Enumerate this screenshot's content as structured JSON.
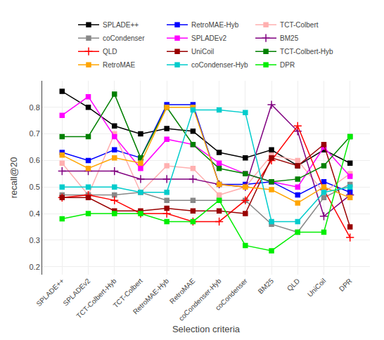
{
  "chart_data": {
    "type": "line",
    "xlabel": "Selection criteria",
    "ylabel": "recall@20",
    "categories": [
      "SPLADE++",
      "SPLADEv2",
      "TCT-Colbert-Hyb",
      "TCT-Colbert",
      "RetroMAE-Hyb",
      "RetroMAE",
      "coCondenser-Hyb",
      "coCondenser",
      "BM25",
      "QLD",
      "UniCoil",
      "DPR"
    ],
    "series": [
      {
        "name": "SPLADE++",
        "color": "#000000",
        "marker": "square",
        "values": [
          0.86,
          0.8,
          0.73,
          0.7,
          0.72,
          0.71,
          0.63,
          0.61,
          0.64,
          0.58,
          0.64,
          0.59
        ]
      },
      {
        "name": "RetroMAE-Hyb",
        "color": "#0000ff",
        "marker": "square",
        "values": [
          0.63,
          0.6,
          0.64,
          0.61,
          0.81,
          0.81,
          0.51,
          0.51,
          0.52,
          0.47,
          0.52,
          0.48
        ]
      },
      {
        "name": "TCT-Colbert",
        "color": "#ffb0b0",
        "marker": "square",
        "values": [
          0.59,
          0.47,
          0.7,
          0.48,
          0.58,
          0.57,
          0.47,
          0.5,
          0.62,
          0.6,
          0.48,
          0.55
        ]
      },
      {
        "name": "coCondenser",
        "color": "#888888",
        "marker": "square",
        "values": [
          0.47,
          0.47,
          0.47,
          0.48,
          0.45,
          0.45,
          0.45,
          0.45,
          0.36,
          0.33,
          0.46,
          0.51
        ]
      },
      {
        "name": "SPLADEv2",
        "color": "#ff00ff",
        "marker": "square",
        "values": [
          0.77,
          0.84,
          0.69,
          0.57,
          0.68,
          0.66,
          0.59,
          0.55,
          0.52,
          0.5,
          0.65,
          0.54
        ]
      },
      {
        "name": "BM25",
        "color": "#800080",
        "marker": "plus",
        "values": [
          0.56,
          0.56,
          0.56,
          0.53,
          0.53,
          0.53,
          0.51,
          0.5,
          0.81,
          0.71,
          0.39,
          0.47
        ]
      },
      {
        "name": "QLD",
        "color": "#ff0000",
        "marker": "plus",
        "values": [
          0.46,
          0.47,
          0.45,
          0.4,
          0.4,
          0.37,
          0.37,
          0.45,
          0.6,
          0.73,
          0.49,
          0.31
        ]
      },
      {
        "name": "UniCoil",
        "color": "#990000",
        "marker": "square",
        "values": [
          0.46,
          0.46,
          0.41,
          0.41,
          0.42,
          0.41,
          0.41,
          0.4,
          0.61,
          0.58,
          0.66,
          0.35
        ]
      },
      {
        "name": "TCT-Colbert-Hyb",
        "color": "#008000",
        "marker": "square",
        "values": [
          0.69,
          0.69,
          0.85,
          0.61,
          0.8,
          0.66,
          0.57,
          0.55,
          0.52,
          0.53,
          0.58,
          0.69
        ]
      },
      {
        "name": "RetroMAE",
        "color": "#ffa500",
        "marker": "square",
        "values": [
          0.62,
          0.57,
          0.61,
          0.59,
          0.8,
          0.8,
          0.51,
          0.5,
          0.49,
          0.44,
          0.5,
          0.46
        ]
      },
      {
        "name": "coCondenser-Hyb",
        "color": "#00cccc",
        "marker": "square",
        "values": [
          0.5,
          0.5,
          0.5,
          0.48,
          0.48,
          0.79,
          0.79,
          0.78,
          0.37,
          0.37,
          0.48,
          0.5
        ]
      },
      {
        "name": "DPR",
        "color": "#00ee00",
        "marker": "square",
        "values": [
          0.38,
          0.4,
          0.4,
          0.4,
          0.37,
          0.37,
          0.45,
          0.28,
          0.26,
          0.33,
          0.33,
          0.69
        ]
      }
    ],
    "ylim": [
      0.17,
      0.9
    ],
    "yticks": [
      0.2,
      0.3,
      0.4,
      0.5,
      0.6,
      0.7,
      0.8
    ],
    "grid": true,
    "legend": "top"
  }
}
